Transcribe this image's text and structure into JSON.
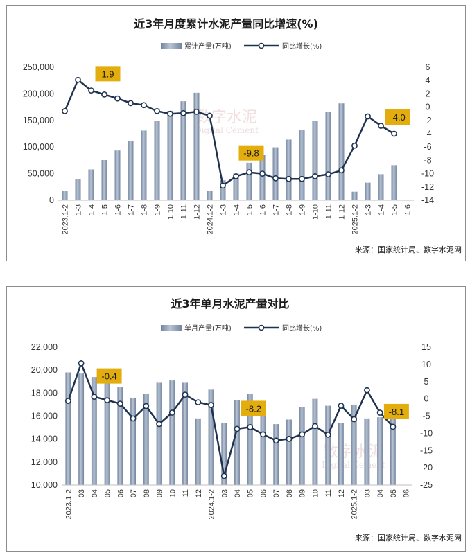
{
  "colors": {
    "bar_top": "#b7c4d6",
    "bar_bottom": "#74849c",
    "line": "#1f3350",
    "callout_bg": "#e3ad0e",
    "grid": "#e6e6e6"
  },
  "chart_data": [
    {
      "type": "bar+line",
      "title": "近3年月度累计水泥产量同比增速(%)",
      "legend": {
        "bar": "累计产量(万吨)",
        "line": "同比增长(%)"
      },
      "categories": [
        "2023.1-2",
        "1-3",
        "1-4",
        "1-5",
        "1-6",
        "1-7",
        "1-8",
        "1-9",
        "1-10",
        "1-11",
        "1-12",
        "2024.1-2",
        "1-3",
        "1-4",
        "1-5",
        "1-6",
        "1-7",
        "1-8",
        "1-9",
        "1-10",
        "1-11",
        "1-12",
        "2025.1-2",
        "1-3",
        "1-4",
        "1-5",
        "1-6"
      ],
      "bar_values": [
        18000,
        39500,
        58000,
        75500,
        93500,
        111500,
        131000,
        149000,
        168000,
        186000,
        202000,
        17500,
        37500,
        50000,
        70500,
        85000,
        99500,
        114000,
        132000,
        149500,
        166500,
        182000,
        16000,
        33000,
        49000,
        66000,
        null
      ],
      "line_values": [
        -0.6,
        4.1,
        2.5,
        1.9,
        1.3,
        0.6,
        0.3,
        -0.6,
        -1.0,
        -0.9,
        -0.7,
        -1.3,
        -11.8,
        -10.4,
        -9.8,
        -10.0,
        -10.7,
        -10.8,
        -10.8,
        -10.4,
        -10.1,
        -9.5,
        -5.8,
        -1.4,
        -2.8,
        -4.0,
        null
      ],
      "y_left": {
        "min": 0,
        "max": 250000,
        "step": 50000,
        "tick_labels": [
          "0",
          "50,000",
          "100,000",
          "150,000",
          "200,000",
          "250,000"
        ]
      },
      "y_right": {
        "min": -14,
        "max": 6,
        "step": 2,
        "tick_labels": [
          "-14",
          "-12",
          "-10",
          "-8",
          "-6",
          "-4",
          "-2",
          "0",
          "2",
          "4",
          "6"
        ]
      },
      "callouts": [
        {
          "index": 3,
          "text": "1.9"
        },
        {
          "index": 14,
          "text": "-9.8"
        },
        {
          "index": 25,
          "text": "-4.0"
        }
      ],
      "source": "来源：国家统计局、数字水泥网",
      "watermark": {
        "main": "数字水泥",
        "sub": "Digital Cement"
      }
    },
    {
      "type": "bar+line",
      "title": "近3年单月水泥产量对比",
      "legend": {
        "bar": "单月产量(万吨)",
        "line": "同比增长(%)"
      },
      "categories": [
        "2023.1-2",
        "03",
        "04",
        "05",
        "06",
        "07",
        "08",
        "09",
        "10",
        "11",
        "12",
        "2024.1-2",
        "03",
        "04",
        "05",
        "06",
        "07",
        "08",
        "09",
        "10",
        "11",
        "12",
        "2025.1-2",
        "03",
        "04",
        "05",
        "06"
      ],
      "bar_values": [
        19800,
        19700,
        19400,
        19600,
        18500,
        17600,
        17900,
        18900,
        19100,
        18900,
        15800,
        18300,
        15400,
        17400,
        17900,
        16400,
        15300,
        15700,
        16800,
        17500,
        16900,
        15400,
        17000,
        15800,
        15900,
        15800,
        null
      ],
      "line_values": [
        -0.6,
        10.3,
        0.6,
        -0.4,
        -1.4,
        -5.7,
        -2.1,
        -7.3,
        -4.0,
        1.2,
        -1.0,
        -1.8,
        -22.4,
        -8.7,
        -8.2,
        -10.3,
        -12.1,
        -11.6,
        -10.3,
        -7.9,
        -10.4,
        -2.0,
        -5.9,
        2.5,
        -4.0,
        -8.1,
        null
      ],
      "y_left": {
        "min": 10000,
        "max": 22000,
        "step": 2000,
        "tick_labels": [
          "10,000",
          "12,000",
          "14,000",
          "16,000",
          "18,000",
          "20,000",
          "22,000"
        ]
      },
      "y_right": {
        "min": -25,
        "max": 15,
        "step": 5,
        "tick_labels": [
          "-25",
          "-20",
          "-15",
          "-10",
          "-5",
          "0",
          "5",
          "10",
          "15"
        ]
      },
      "callouts": [
        {
          "index": 3,
          "text": "-0.4"
        },
        {
          "index": 14,
          "text": "-8.2"
        },
        {
          "index": 25,
          "text": "-8.1"
        }
      ],
      "source": "来源：国家统计局、数字水泥网",
      "watermark": {
        "main": "数字水泥",
        "sub": "Digital Cement"
      }
    }
  ]
}
